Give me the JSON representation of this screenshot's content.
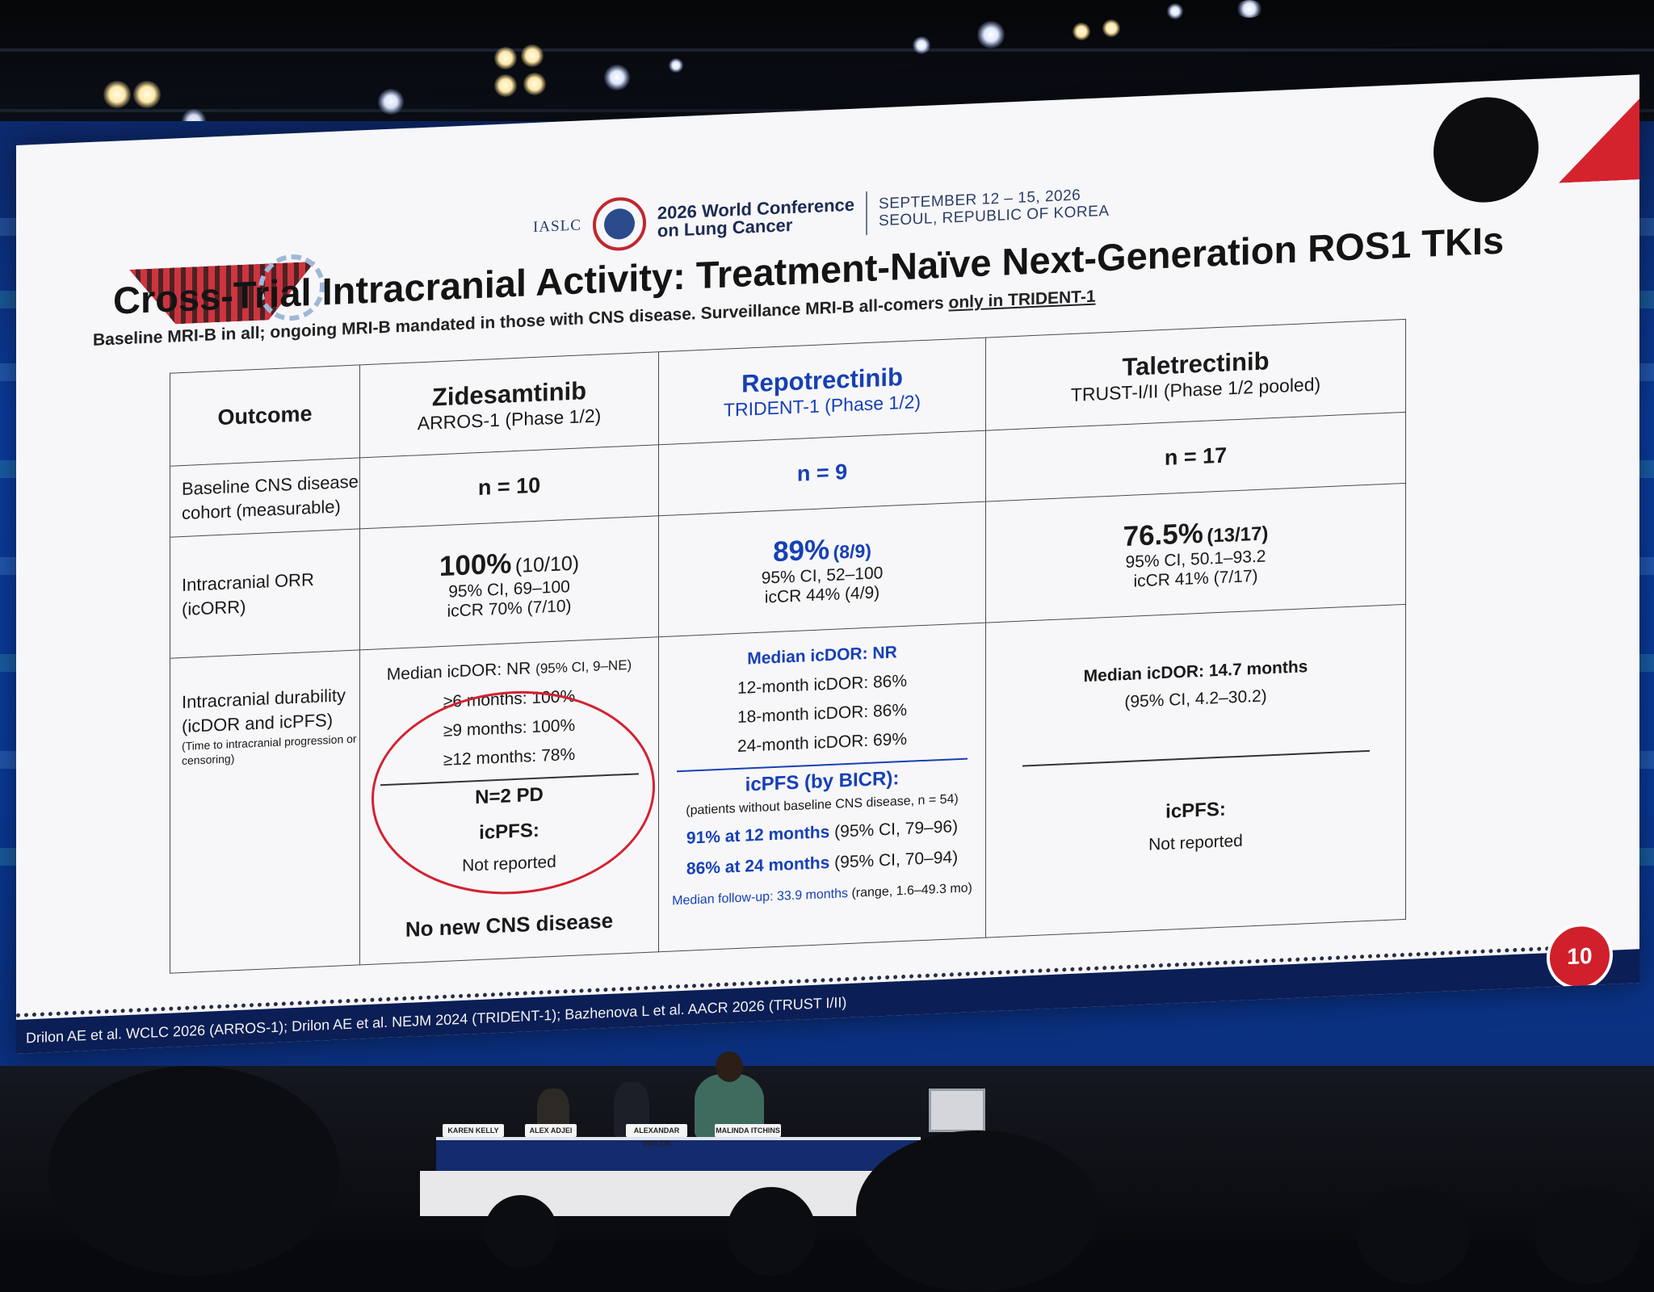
{
  "conference": {
    "org": "IASLC",
    "name_line1": "2026 World Conference",
    "name_line2": "on Lung Cancer",
    "dates": "SEPTEMBER 12 – 15, 2026",
    "location": "SEOUL, REPUBLIC OF KOREA"
  },
  "slide": {
    "title": "Cross-Trial Intracranial Activity: Treatment-Naïve Next-Generation ROS1 TKIs",
    "subtitle_main": "Baseline MRI-B in all; ongoing MRI-B mandated in those with CNS disease. Surveillance MRI-B all-comers ",
    "subtitle_underlined": "only in TRIDENT-1",
    "page_number": "10",
    "references": "Drilon AE et al. WCLC 2026 (ARROS-1); Drilon AE et al. NEJM 2024 (TRIDENT-1); Bazhenova L et al. AACR 2026 (TRUST I/II)"
  },
  "table": {
    "headers": {
      "outcome": "Outcome",
      "col1_name": "Zidesamtinib",
      "col1_trial": "ARROS-1 (Phase 1/2)",
      "col2_name": "Repotrectinib",
      "col2_trial": "TRIDENT-1 (Phase 1/2)",
      "col3_name": "Taletrectinib",
      "col3_trial": "TRUST-I/II (Phase 1/2 pooled)"
    },
    "row_cohort": {
      "label": "Baseline CNS disease cohort (measurable)",
      "col1": "n = 10",
      "col2": "n = 9",
      "col3": "n = 17"
    },
    "row_orr": {
      "label_line1": "Intracranial ORR",
      "label_line2": "(icORR)",
      "col1_main": "100%",
      "col1_frac": "(10/10)",
      "col1_ci": "95% CI, 69–100",
      "col1_cr": "icCR 70% (7/10)",
      "col2_main": "89%",
      "col2_frac": "(8/9)",
      "col2_ci": "95% CI, 52–100",
      "col2_cr": "icCR 44% (4/9)",
      "col3_main": "76.5%",
      "col3_frac": "(13/17)",
      "col3_ci": "95% CI, 50.1–93.2",
      "col3_cr": "icCR 41% (7/17)"
    },
    "row_durability": {
      "label_line1": "Intracranial durability",
      "label_line2": "(icDOR and icPFS)",
      "label_note": "(Time to intracranial progression or censoring)",
      "col1_dor": "Median icDOR: NR",
      "col1_dor_ci": "(95% CI, 9–NE)",
      "col1_6m": "≥6 months: 100%",
      "col1_9m": "≥9 months: 100%",
      "col1_12m": "≥12 months: 78%",
      "col1_pd": "N=2 PD",
      "col1_pfs_label": "icPFS:",
      "col1_pfs_value": "Not reported",
      "col1_footer": "No new CNS disease",
      "col2_dor": "Median icDOR: NR",
      "col2_12m": "12-month icDOR: 86%",
      "col2_18m": "18-month icDOR: 86%",
      "col2_24m": "24-month icDOR: 69%",
      "col2_pfs_label": "icPFS (by BICR):",
      "col2_pfs_note": "(patients without baseline CNS disease, n = 54)",
      "col2_pfs_12_a": "91% at 12 months",
      "col2_pfs_12_b": " (95% CI, 79–96)",
      "col2_pfs_24_a": "86% at 24 months",
      "col2_pfs_24_b": " (95% CI, 70–94)",
      "col2_fu_a": "Median follow-up: 33.9 months",
      "col2_fu_b": " (range, 1.6–49.3 mo)",
      "col3_dor": "Median icDOR: 14.7 months",
      "col3_dor_ci": "(95% CI, 4.2–30.2)",
      "col3_pfs_label": "icPFS:",
      "col3_pfs_value": "Not reported"
    }
  },
  "stage": {
    "nameplates": [
      "KAREN KELLY",
      "ALEX ADJEI",
      "ALEXANDAR DRILON",
      "MALINDA ITCHINS"
    ]
  },
  "colors": {
    "accent_blue": "#1740b5",
    "annotation_red": "#d32230",
    "slide_footer": "#0b1e55"
  }
}
